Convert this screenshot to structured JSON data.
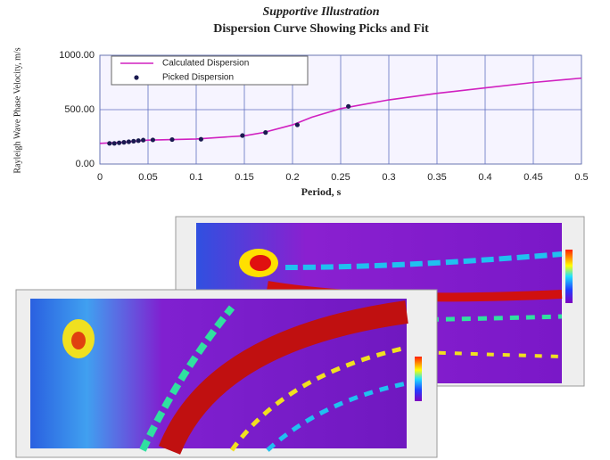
{
  "chart_data": {
    "type": "line",
    "title": "Supportive Illustration",
    "subtitle": "Dispersion Curve Showing Picks and Fit",
    "x_label": "Period, s",
    "y_label": "Rayleigh Wave Phase Velocity, m/s",
    "xlim": [
      0,
      0.5
    ],
    "ylim": [
      0,
      1000
    ],
    "xticks": [
      0,
      0.05,
      0.1,
      0.15,
      0.2,
      0.25,
      0.3,
      0.35,
      0.4,
      0.45,
      0.5
    ],
    "yticks": [
      {
        "value": 0,
        "label": "0.00"
      },
      {
        "value": 500,
        "label": "500.00"
      },
      {
        "value": 1000,
        "label": "1000.00"
      }
    ],
    "grid": true,
    "legend": "upper left",
    "series": [
      {
        "name": "Calculated Dispersion",
        "type": "line",
        "color": "#d020c0",
        "x": [
          0,
          0.025,
          0.05,
          0.1,
          0.15,
          0.17,
          0.2,
          0.22,
          0.25,
          0.3,
          0.35,
          0.4,
          0.45,
          0.5
        ],
        "values": [
          190,
          200,
          220,
          230,
          260,
          290,
          360,
          430,
          510,
          590,
          650,
          700,
          750,
          790
        ]
      },
      {
        "name": "Picked Dispersion",
        "type": "scatter",
        "color": "#1a1a50",
        "x": [
          0.01,
          0.015,
          0.02,
          0.025,
          0.03,
          0.035,
          0.04,
          0.045,
          0.055,
          0.075,
          0.105,
          0.148,
          0.172,
          0.205,
          0.258
        ],
        "values": [
          190,
          190,
          195,
          200,
          205,
          210,
          215,
          220,
          222,
          225,
          228,
          262,
          290,
          360,
          530
        ]
      }
    ]
  }
}
